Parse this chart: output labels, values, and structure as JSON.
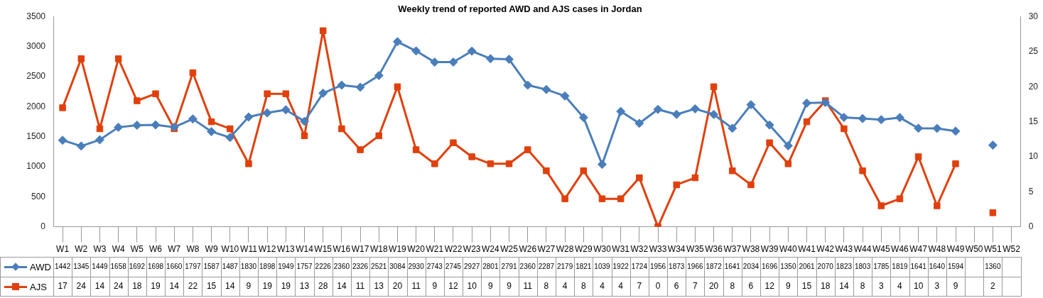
{
  "chart_data": {
    "type": "line",
    "title": "Weekly trend of reported AWD and AJS cases in Jordan",
    "categories": [
      "W1",
      "W2",
      "W3",
      "W4",
      "W5",
      "W6",
      "W7",
      "W8",
      "W9",
      "W10",
      "W11",
      "W12",
      "W13",
      "W14",
      "W15",
      "W16",
      "W17",
      "W18",
      "W19",
      "W20",
      "W21",
      "W22",
      "W23",
      "W24",
      "W25",
      "W26",
      "W27",
      "W28",
      "W29",
      "W30",
      "W31",
      "W32",
      "W33",
      "W34",
      "W35",
      "W36",
      "W37",
      "W38",
      "W39",
      "W40",
      "W41",
      "W42",
      "W43",
      "W44",
      "W45",
      "W46",
      "W47",
      "W48",
      "W49",
      "W50",
      "W51",
      "W52"
    ],
    "series": [
      {
        "name": "AWD",
        "color": "#4a7ebb",
        "marker": "diamond",
        "values": [
          1442,
          1345,
          1449,
          1658,
          1692,
          1698,
          1660,
          1797,
          1587,
          1487,
          1830,
          1898,
          1949,
          1757,
          2226,
          2360,
          2326,
          2521,
          3084,
          2930,
          2743,
          2745,
          2927,
          2801,
          2791,
          2360,
          2287,
          2179,
          1821,
          1039,
          1922,
          1724,
          1956,
          1873,
          1966,
          1872,
          1641,
          2034,
          1696,
          1350,
          2061,
          2070,
          1823,
          1803,
          1785,
          1819,
          1641,
          1640,
          1594,
          null,
          1360,
          null
        ]
      },
      {
        "name": "AJS",
        "color": "#e0400c",
        "marker": "square",
        "axis": "y2",
        "values": [
          17,
          24,
          14,
          24,
          18,
          19,
          14,
          22,
          15,
          14,
          9,
          19,
          19,
          13,
          28,
          14,
          11,
          13,
          20,
          11,
          9,
          12,
          10,
          9,
          9,
          11,
          8,
          4,
          8,
          4,
          4,
          7,
          0,
          6,
          7,
          20,
          8,
          6,
          12,
          9,
          15,
          18,
          14,
          8,
          3,
          4,
          10,
          3,
          9,
          null,
          2,
          null
        ]
      }
    ],
    "ylim": [
      0,
      3500
    ],
    "yticks": [
      0,
      500,
      1000,
      1500,
      2000,
      2500,
      3000,
      3500
    ],
    "y2lim": [
      0,
      30
    ],
    "y2ticks": [
      0,
      5,
      10,
      15,
      20,
      25,
      30
    ],
    "grid": false,
    "legend": "bottom",
    "data_labels": true,
    "line_style": "solid"
  }
}
